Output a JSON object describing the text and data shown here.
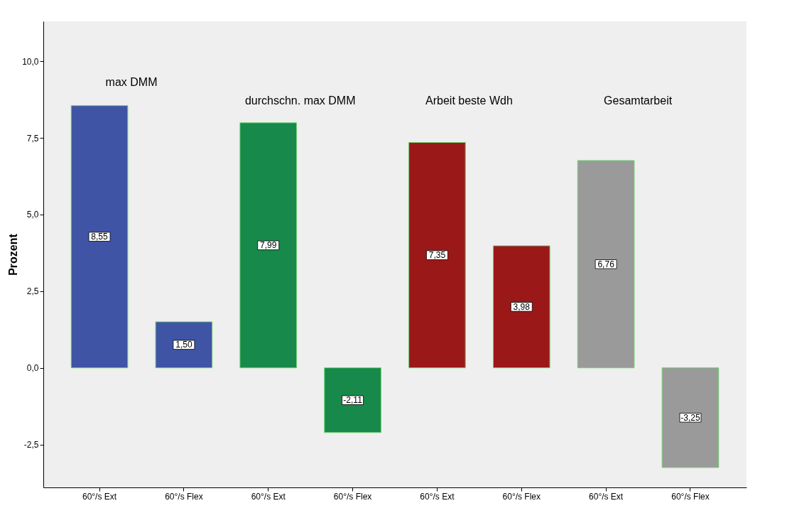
{
  "chart_data": {
    "type": "bar",
    "ylabel": "Prozent",
    "categories": [
      "60°/s Ext",
      "60°/s Flex",
      "60°/s Ext",
      "60°/s Flex",
      "60°/s Ext",
      "60°/s Flex",
      "60°/s Ext",
      "60°/s Flex"
    ],
    "values": [
      8.55,
      1.5,
      7.99,
      -2.11,
      7.35,
      3.98,
      6.76,
      -3.25
    ],
    "colors": [
      "#3f54a5",
      "#3f54a5",
      "#17894a",
      "#17894a",
      "#9b1818",
      "#9b1818",
      "#9a9a9a",
      "#9a9a9a"
    ],
    "value_labels": [
      "8,55",
      "1,50",
      "7,99",
      "-2,11",
      "7,35",
      "3,98",
      "6,76",
      "-3,25"
    ],
    "annotations": [
      "max DMM",
      "durchschn. max DMM",
      "Arbeit beste Wdh",
      "Gesamtarbeit"
    ],
    "ylim": [
      -3.9,
      11.3
    ],
    "yticks": [
      {
        "value": -2.5,
        "label": "-2,5"
      },
      {
        "value": 0,
        "label": "0,0"
      },
      {
        "value": 2.5,
        "label": "2,5"
      },
      {
        "value": 5,
        "label": "5,0"
      },
      {
        "value": 7.5,
        "label": "7,5"
      },
      {
        "value": 10,
        "label": "10,0"
      }
    ],
    "grid": false
  }
}
